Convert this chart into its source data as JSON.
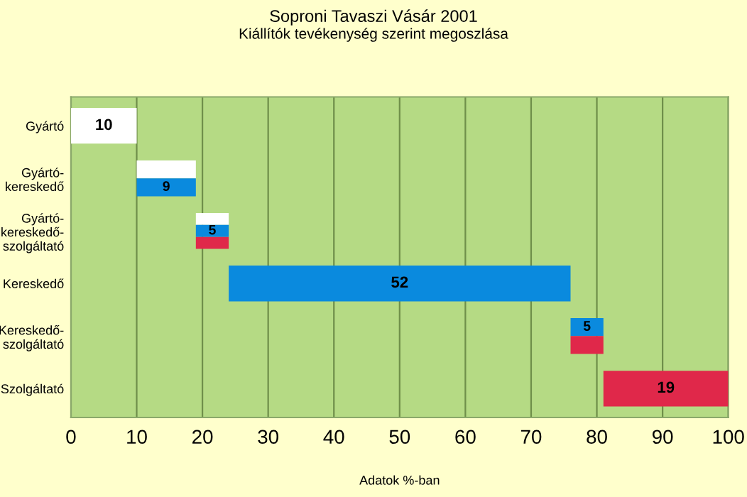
{
  "chart_data": {
    "type": "bar",
    "orientation": "horizontal",
    "title": "Soproni Tavaszi Vásár 2001",
    "subtitle": "Kiállítók tevékenység szerint megoszlása",
    "xlabel": "Adatok %-ban",
    "categories": [
      "Gyártó",
      "Gyártó-\nkereskedő",
      "Gyártó-\nkereskedő-\nszolgáltató",
      "Kereskedő",
      "Kereskedő-\nszolgáltató",
      "Szolgáltató"
    ],
    "series": [
      {
        "color": "#ffffff",
        "base": [
          0,
          10,
          19,
          null,
          null,
          null
        ],
        "values": [
          10,
          9,
          5,
          null,
          null,
          null
        ],
        "value_labels": [
          "10",
          null,
          null,
          null,
          null,
          null
        ]
      },
      {
        "color": "#0a8ade",
        "base": [
          null,
          10,
          19,
          24,
          76,
          null
        ],
        "values": [
          null,
          9,
          5,
          52,
          5,
          null
        ],
        "value_labels": [
          null,
          "9",
          "5",
          "52",
          "5",
          null
        ]
      },
      {
        "color": "#e0284a",
        "base": [
          null,
          null,
          19,
          null,
          76,
          81
        ],
        "values": [
          null,
          null,
          5,
          null,
          5,
          19
        ],
        "value_labels": [
          null,
          null,
          null,
          null,
          null,
          "19"
        ]
      }
    ],
    "xlim": [
      0,
      100
    ],
    "xticks": [
      0,
      10,
      20,
      30,
      40,
      50,
      60,
      70,
      80,
      90,
      100
    ],
    "grid": "x"
  }
}
